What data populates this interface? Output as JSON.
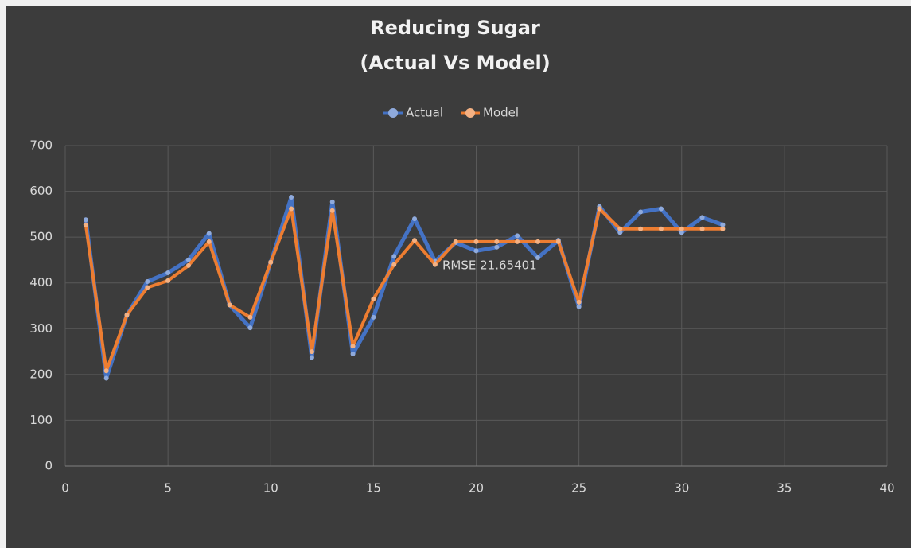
{
  "chart_data": {
    "type": "line",
    "title": "Reducing Sugar",
    "subtitle": "(Actual Vs Model)",
    "annotation": "RMSE 21.65401",
    "x": [
      1,
      2,
      3,
      4,
      5,
      6,
      7,
      8,
      9,
      10,
      11,
      12,
      13,
      14,
      15,
      16,
      17,
      18,
      19,
      20,
      21,
      22,
      23,
      24,
      25,
      26,
      27,
      28,
      29,
      30,
      31,
      32
    ],
    "series": [
      {
        "name": "Actual",
        "color": "#4472c4",
        "marker_color": "#8faadc",
        "values": [
          538,
          192,
          330,
          403,
          422,
          450,
          508,
          352,
          302,
          445,
          587,
          237,
          577,
          245,
          325,
          458,
          540,
          447,
          488,
          470,
          478,
          503,
          455,
          493,
          348,
          567,
          510,
          555,
          562,
          510,
          543,
          527
        ]
      },
      {
        "name": "Model",
        "color": "#ed7d31",
        "marker_color": "#f4b183",
        "values": [
          527,
          208,
          330,
          390,
          405,
          438,
          490,
          352,
          325,
          445,
          562,
          250,
          558,
          262,
          365,
          440,
          493,
          440,
          490,
          490,
          490,
          490,
          490,
          490,
          358,
          562,
          518,
          518,
          518,
          518,
          518,
          518
        ]
      }
    ],
    "xlim": [
      0,
      40
    ],
    "xticks": [
      0,
      5,
      10,
      15,
      20,
      25,
      30,
      35,
      40
    ],
    "ylim": [
      0,
      700
    ],
    "yticks": [
      0,
      100,
      200,
      300,
      400,
      500,
      600,
      700
    ],
    "grid": true,
    "legend": "top"
  }
}
